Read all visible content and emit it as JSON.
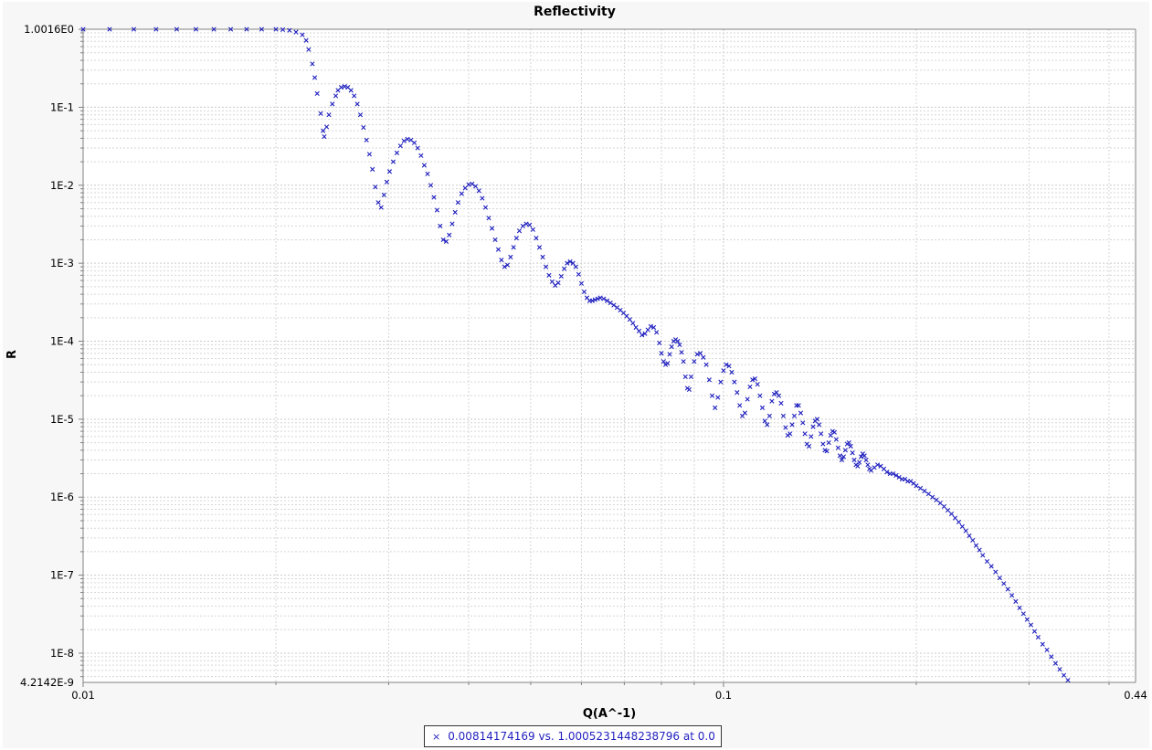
{
  "chart_data": {
    "type": "scatter",
    "title": "Reflectivity",
    "xlabel": "Q(A^-1)",
    "ylabel": "R",
    "x_scale": "log",
    "y_scale": "log",
    "xlim": [
      0.01,
      0.44
    ],
    "ylim": [
      4.2142e-09,
      1.0016
    ],
    "x_tick_labels": [
      {
        "value": 0.01,
        "label": "0.01"
      },
      {
        "value": 0.1,
        "label": "0.1"
      },
      {
        "value": 0.44,
        "label": "0.44"
      }
    ],
    "y_tick_labels": [
      {
        "value": 1.0016,
        "label": "1.0016E0"
      },
      {
        "value": 0.1,
        "label": "1E-1"
      },
      {
        "value": 0.01,
        "label": "1E-2"
      },
      {
        "value": 0.001,
        "label": "1E-3"
      },
      {
        "value": 0.0001,
        "label": "1E-4"
      },
      {
        "value": 1e-05,
        "label": "1E-5"
      },
      {
        "value": 1e-06,
        "label": "1E-6"
      },
      {
        "value": 1e-07,
        "label": "1E-7"
      },
      {
        "value": 1e-08,
        "label": "1E-8"
      },
      {
        "value": 4.2142e-09,
        "label": "4.2142E-9"
      }
    ],
    "grid": true,
    "marker": "x",
    "legend_position": "bottom-center",
    "series": [
      {
        "name": "0.00814174169 vs. 1.0005231448238796 at 0.0",
        "color": "#1f1fbf",
        "points": [
          [
            0.01,
            1.0
          ],
          [
            0.011,
            1.0
          ],
          [
            0.012,
            1.0
          ],
          [
            0.013,
            1.0
          ],
          [
            0.014,
            1.0
          ],
          [
            0.015,
            1.0
          ],
          [
            0.016,
            1.0
          ],
          [
            0.017,
            1.0
          ],
          [
            0.018,
            1.0
          ],
          [
            0.019,
            1.0
          ],
          [
            0.02,
            1.0
          ],
          [
            0.0205,
            0.99
          ],
          [
            0.021,
            0.97
          ],
          [
            0.0215,
            0.92
          ],
          [
            0.022,
            0.85
          ],
          [
            0.0223,
            0.72
          ],
          [
            0.0225,
            0.55
          ],
          [
            0.0228,
            0.36
          ],
          [
            0.023,
            0.24
          ],
          [
            0.0232,
            0.15
          ],
          [
            0.0235,
            0.083
          ],
          [
            0.0237,
            0.05
          ],
          [
            0.0238,
            0.042
          ],
          [
            0.024,
            0.056
          ],
          [
            0.0242,
            0.08
          ],
          [
            0.0245,
            0.11
          ],
          [
            0.0248,
            0.14
          ],
          [
            0.025,
            0.165
          ],
          [
            0.0253,
            0.18
          ],
          [
            0.0256,
            0.185
          ],
          [
            0.0259,
            0.18
          ],
          [
            0.0262,
            0.165
          ],
          [
            0.0265,
            0.14
          ],
          [
            0.0268,
            0.11
          ],
          [
            0.0271,
            0.08
          ],
          [
            0.0274,
            0.055
          ],
          [
            0.0277,
            0.038
          ],
          [
            0.028,
            0.025
          ],
          [
            0.0283,
            0.016
          ],
          [
            0.0286,
            0.0095
          ],
          [
            0.0289,
            0.006
          ],
          [
            0.0292,
            0.0052
          ],
          [
            0.0295,
            0.0075
          ],
          [
            0.0298,
            0.011
          ],
          [
            0.0301,
            0.015
          ],
          [
            0.0305,
            0.02
          ],
          [
            0.0309,
            0.026
          ],
          [
            0.0313,
            0.032
          ],
          [
            0.0317,
            0.037
          ],
          [
            0.0321,
            0.039
          ],
          [
            0.0325,
            0.038
          ],
          [
            0.0329,
            0.035
          ],
          [
            0.0333,
            0.03
          ],
          [
            0.0337,
            0.024
          ],
          [
            0.0341,
            0.018
          ],
          [
            0.0345,
            0.014
          ],
          [
            0.0349,
            0.01
          ],
          [
            0.0353,
            0.007
          ],
          [
            0.0357,
            0.0048
          ],
          [
            0.0361,
            0.003
          ],
          [
            0.0365,
            0.002
          ],
          [
            0.0369,
            0.0019
          ],
          [
            0.0373,
            0.0023
          ],
          [
            0.0377,
            0.0032
          ],
          [
            0.0381,
            0.0045
          ],
          [
            0.0385,
            0.006
          ],
          [
            0.039,
            0.0078
          ],
          [
            0.0395,
            0.0092
          ],
          [
            0.04,
            0.0102
          ],
          [
            0.0405,
            0.0104
          ],
          [
            0.041,
            0.0097
          ],
          [
            0.0415,
            0.0085
          ],
          [
            0.042,
            0.0068
          ],
          [
            0.0425,
            0.0052
          ],
          [
            0.043,
            0.0038
          ],
          [
            0.0435,
            0.0028
          ],
          [
            0.044,
            0.002
          ],
          [
            0.0445,
            0.0015
          ],
          [
            0.045,
            0.0011
          ],
          [
            0.0455,
            0.0009
          ],
          [
            0.046,
            0.00095
          ],
          [
            0.0465,
            0.0012
          ],
          [
            0.047,
            0.0016
          ],
          [
            0.0475,
            0.0021
          ],
          [
            0.048,
            0.0026
          ],
          [
            0.0486,
            0.003
          ],
          [
            0.0492,
            0.0032
          ],
          [
            0.0498,
            0.0031
          ],
          [
            0.0504,
            0.0027
          ],
          [
            0.051,
            0.0021
          ],
          [
            0.0516,
            0.0016
          ],
          [
            0.0522,
            0.0012
          ],
          [
            0.0528,
            0.0009
          ],
          [
            0.0534,
            0.0007
          ],
          [
            0.054,
            0.00058
          ],
          [
            0.0546,
            0.00052
          ],
          [
            0.0552,
            0.00056
          ],
          [
            0.0558,
            0.00068
          ],
          [
            0.0564,
            0.00085
          ],
          [
            0.057,
            0.001
          ],
          [
            0.0576,
            0.00105
          ],
          [
            0.0582,
            0.001
          ],
          [
            0.0588,
            0.0009
          ],
          [
            0.0594,
            0.00072
          ],
          [
            0.06,
            0.00055
          ],
          [
            0.0606,
            0.00043
          ],
          [
            0.0612,
            0.00036
          ],
          [
            0.0618,
            0.00033
          ],
          [
            0.0624,
            0.00033
          ],
          [
            0.063,
            0.00034
          ],
          [
            0.0636,
            0.00035
          ],
          [
            0.0642,
            0.00036
          ],
          [
            0.065,
            0.00035
          ],
          [
            0.0658,
            0.00033
          ],
          [
            0.0666,
            0.00031
          ],
          [
            0.0674,
            0.00029
          ],
          [
            0.0682,
            0.00027
          ],
          [
            0.069,
            0.00025
          ],
          [
            0.0698,
            0.00023
          ],
          [
            0.0706,
            0.00021
          ],
          [
            0.0714,
            0.00019
          ],
          [
            0.0722,
            0.00017
          ],
          [
            0.073,
            0.00015
          ],
          [
            0.0738,
            0.000135
          ],
          [
            0.0746,
            0.00012
          ],
          [
            0.0754,
            0.000125
          ],
          [
            0.0762,
            0.00014
          ],
          [
            0.077,
            0.000155
          ],
          [
            0.0778,
            0.00015
          ],
          [
            0.0786,
            0.00013
          ],
          [
            0.0794,
            9.5e-05
          ],
          [
            0.08,
            7e-05
          ],
          [
            0.0806,
            5.5e-05
          ],
          [
            0.0812,
            5e-05
          ],
          [
            0.0818,
            5.2e-05
          ],
          [
            0.0824,
            6.8e-05
          ],
          [
            0.083,
            8.5e-05
          ],
          [
            0.0836,
            0.0001
          ],
          [
            0.0842,
            0.000105
          ],
          [
            0.0848,
            0.0001
          ],
          [
            0.0854,
            9e-05
          ],
          [
            0.086,
            7.2e-05
          ],
          [
            0.0866,
            5.5e-05
          ],
          [
            0.0872,
            3.5e-05
          ],
          [
            0.0878,
            2.5e-05
          ],
          [
            0.0884,
            2.4e-05
          ],
          [
            0.089,
            3.5e-05
          ],
          [
            0.09,
            5.5e-05
          ],
          [
            0.091,
            6.8e-05
          ],
          [
            0.092,
            7e-05
          ],
          [
            0.093,
            6.2e-05
          ],
          [
            0.094,
            5e-05
          ],
          [
            0.095,
            3.2e-05
          ],
          [
            0.096,
            2e-05
          ],
          [
            0.097,
            1.4e-05
          ],
          [
            0.098,
            1.9e-05
          ],
          [
            0.099,
            3e-05
          ],
          [
            0.1,
            4.2e-05
          ],
          [
            0.101,
            5e-05
          ],
          [
            0.102,
            4.8e-05
          ],
          [
            0.103,
            4e-05
          ],
          [
            0.104,
            3e-05
          ],
          [
            0.105,
            2.2e-05
          ],
          [
            0.106,
            1.5e-05
          ],
          [
            0.107,
            1.1e-05
          ],
          [
            0.108,
            1.2e-05
          ],
          [
            0.109,
            1.8e-05
          ],
          [
            0.11,
            2.6e-05
          ],
          [
            0.111,
            3.2e-05
          ],
          [
            0.112,
            3.3e-05
          ],
          [
            0.113,
            2.8e-05
          ],
          [
            0.114,
            2e-05
          ],
          [
            0.115,
            1.4e-05
          ],
          [
            0.116,
            9.5e-06
          ],
          [
            0.117,
            8.5e-06
          ],
          [
            0.118,
            1.1e-05
          ],
          [
            0.119,
            1.7e-05
          ],
          [
            0.12,
            2.1e-05
          ],
          [
            0.121,
            2.2e-05
          ],
          [
            0.122,
            2e-05
          ],
          [
            0.123,
            1.6e-05
          ],
          [
            0.124,
            1.1e-05
          ],
          [
            0.125,
            7.8e-06
          ],
          [
            0.126,
            6.2e-06
          ],
          [
            0.127,
            6.5e-06
          ],
          [
            0.128,
            8.5e-06
          ],
          [
            0.129,
            1.1e-05
          ],
          [
            0.13,
            1.5e-05
          ],
          [
            0.131,
            1.5e-05
          ],
          [
            0.132,
            1.2e-05
          ],
          [
            0.133,
            9e-06
          ],
          [
            0.134,
            6.5e-06
          ],
          [
            0.135,
            4.8e-06
          ],
          [
            0.136,
            4.5e-06
          ],
          [
            0.137,
            6e-06
          ],
          [
            0.138,
            8e-06
          ],
          [
            0.139,
            9.5e-06
          ],
          [
            0.14,
            1e-05
          ],
          [
            0.141,
            8.5e-06
          ],
          [
            0.142,
            6.5e-06
          ],
          [
            0.143,
            4.8e-06
          ],
          [
            0.144,
            4e-06
          ],
          [
            0.145,
            3.9e-06
          ],
          [
            0.146,
            5e-06
          ],
          [
            0.147,
            6.2e-06
          ],
          [
            0.148,
            7e-06
          ],
          [
            0.149,
            6.8e-06
          ],
          [
            0.15,
            5.5e-06
          ],
          [
            0.151,
            4.3e-06
          ],
          [
            0.152,
            3.4e-06
          ],
          [
            0.153,
            3e-06
          ],
          [
            0.154,
            3.3e-06
          ],
          [
            0.155,
            4e-06
          ],
          [
            0.156,
            4.8e-06
          ],
          [
            0.157,
            5e-06
          ],
          [
            0.158,
            4.5e-06
          ],
          [
            0.159,
            3.7e-06
          ],
          [
            0.16,
            3e-06
          ],
          [
            0.161,
            2.6e-06
          ],
          [
            0.162,
            2.5e-06
          ],
          [
            0.163,
            2.8e-06
          ],
          [
            0.164,
            3.3e-06
          ],
          [
            0.165,
            3.6e-06
          ],
          [
            0.166,
            3.4e-06
          ],
          [
            0.167,
            3e-06
          ],
          [
            0.168,
            2.6e-06
          ],
          [
            0.169,
            2.3e-06
          ],
          [
            0.17,
            2.2e-06
          ],
          [
            0.172,
            2.4e-06
          ],
          [
            0.174,
            2.6e-06
          ],
          [
            0.176,
            2.5e-06
          ],
          [
            0.178,
            2.3e-06
          ],
          [
            0.18,
            2.1e-06
          ],
          [
            0.182,
            2e-06
          ],
          [
            0.184,
            2e-06
          ],
          [
            0.186,
            1.9e-06
          ],
          [
            0.188,
            1.8e-06
          ],
          [
            0.19,
            1.7e-06
          ],
          [
            0.192,
            1.7e-06
          ],
          [
            0.194,
            1.6e-06
          ],
          [
            0.196,
            1.6e-06
          ],
          [
            0.198,
            1.5e-06
          ],
          [
            0.2,
            1.4e-06
          ],
          [
            0.203,
            1.3e-06
          ],
          [
            0.206,
            1.2e-06
          ],
          [
            0.209,
            1.1e-06
          ],
          [
            0.212,
            1e-06
          ],
          [
            0.215,
            9.2e-07
          ],
          [
            0.218,
            8.4e-07
          ],
          [
            0.221,
            7.6e-07
          ],
          [
            0.224,
            6.8e-07
          ],
          [
            0.227,
            6.1e-07
          ],
          [
            0.23,
            5.4e-07
          ],
          [
            0.233,
            4.8e-07
          ],
          [
            0.236,
            4.2e-07
          ],
          [
            0.239,
            3.7e-07
          ],
          [
            0.242,
            3.2e-07
          ],
          [
            0.245,
            2.8e-07
          ],
          [
            0.248,
            2.4e-07
          ],
          [
            0.251,
            2.1e-07
          ],
          [
            0.254,
            1.8e-07
          ],
          [
            0.258,
            1.5e-07
          ],
          [
            0.262,
            1.3e-07
          ],
          [
            0.266,
            1.1e-07
          ],
          [
            0.27,
            9.2e-08
          ],
          [
            0.274,
            7.8e-08
          ],
          [
            0.278,
            6.6e-08
          ],
          [
            0.282,
            5.5e-08
          ],
          [
            0.286,
            4.6e-08
          ],
          [
            0.29,
            3.8e-08
          ],
          [
            0.294,
            3.2e-08
          ],
          [
            0.298,
            2.7e-08
          ],
          [
            0.302,
            2.3e-08
          ],
          [
            0.306,
            1.9e-08
          ],
          [
            0.31,
            1.6e-08
          ],
          [
            0.315,
            1.3e-08
          ],
          [
            0.32,
            1.1e-08
          ],
          [
            0.325,
            9e-09
          ],
          [
            0.33,
            7.4e-09
          ],
          [
            0.335,
            6.2e-09
          ],
          [
            0.34,
            5.2e-09
          ],
          [
            0.345,
            4.5e-09
          ]
        ]
      }
    ]
  }
}
